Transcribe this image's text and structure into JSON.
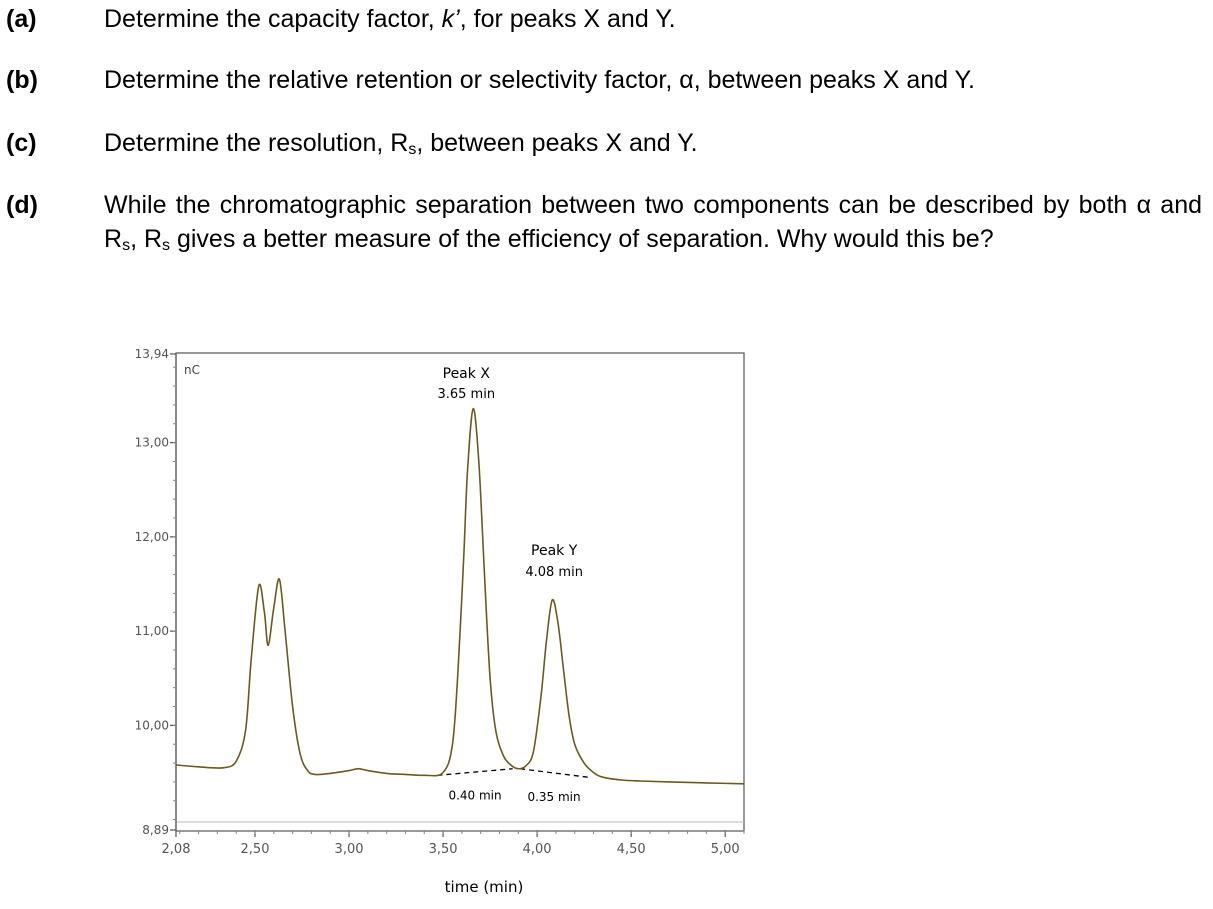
{
  "questions": [
    {
      "label": "(a)",
      "pre": "Determine the capacity factor, ",
      "sym": "k’",
      "post": ", for peaks X and Y."
    },
    {
      "label": "(b)",
      "text": "Determine the relative retention or selectivity factor, α, between peaks X and Y."
    },
    {
      "label": "(c)",
      "pre": "Determine the resolution, R",
      "sub": "s",
      "post": ", between peaks X and Y."
    },
    {
      "label": "(d)",
      "pre": "While the chromatographic separation between two components can be described by both α and R",
      "sub1": "s",
      "mid": ", R",
      "sub2": "s",
      "post": " gives a better measure of the efficiency of separation. Why would this be?"
    }
  ],
  "chart_data": {
    "type": "line",
    "xlabel": "time (min)",
    "ylabel": "nC",
    "xlim": [
      2.08,
      5.1
    ],
    "ylim": [
      8.89,
      13.94
    ],
    "x_ticks": [
      "2,08",
      "2,50",
      "3,00",
      "3,50",
      "4,00",
      "4,50",
      "5,00"
    ],
    "y_ticks": [
      "8,89",
      "10,00",
      "11,00",
      "12,00",
      "13,00",
      "13,94"
    ],
    "series": [
      {
        "name": "",
        "x": [
          2.08,
          2.2,
          2.33,
          2.4,
          2.45,
          2.48,
          2.52,
          2.55,
          2.57,
          2.6,
          2.63,
          2.66,
          2.7,
          2.74,
          2.78,
          2.82,
          2.9,
          3.0,
          3.05,
          3.1,
          3.2,
          3.3,
          3.4,
          3.5,
          3.55,
          3.58,
          3.61,
          3.63,
          3.66,
          3.69,
          3.72,
          3.75,
          3.78,
          3.82,
          3.86,
          3.9,
          3.94,
          3.98,
          4.02,
          4.05,
          4.08,
          4.11,
          4.14,
          4.17,
          4.2,
          4.25,
          4.3,
          4.35,
          4.45,
          4.55,
          4.7,
          4.9,
          5.1
        ],
        "y": [
          9.58,
          9.56,
          9.55,
          9.62,
          9.95,
          10.7,
          11.48,
          11.2,
          10.85,
          11.25,
          11.55,
          11.0,
          10.2,
          9.7,
          9.52,
          9.48,
          9.49,
          9.52,
          9.54,
          9.52,
          9.49,
          9.48,
          9.47,
          9.5,
          9.8,
          10.6,
          11.8,
          12.7,
          13.36,
          12.8,
          11.6,
          10.5,
          9.95,
          9.68,
          9.58,
          9.54,
          9.57,
          9.72,
          10.3,
          10.9,
          11.33,
          11.1,
          10.6,
          10.1,
          9.8,
          9.6,
          9.5,
          9.45,
          9.42,
          9.41,
          9.4,
          9.39,
          9.38
        ]
      }
    ],
    "annotations": [
      {
        "label": "Peak X",
        "time": "3.65 min",
        "x": 3.65
      },
      {
        "label": "Peak Y",
        "time": "4.08 min",
        "x": 4.08
      }
    ],
    "baseline_widths": [
      {
        "text": "0.40 min",
        "x1": 3.47,
        "x2": 3.87,
        "y1": 9.47,
        "y2": 9.54
      },
      {
        "text": "0.35 min",
        "x1": 3.91,
        "x2": 4.27,
        "y1": 9.54,
        "y2": 9.45
      }
    ],
    "grid": false
  }
}
